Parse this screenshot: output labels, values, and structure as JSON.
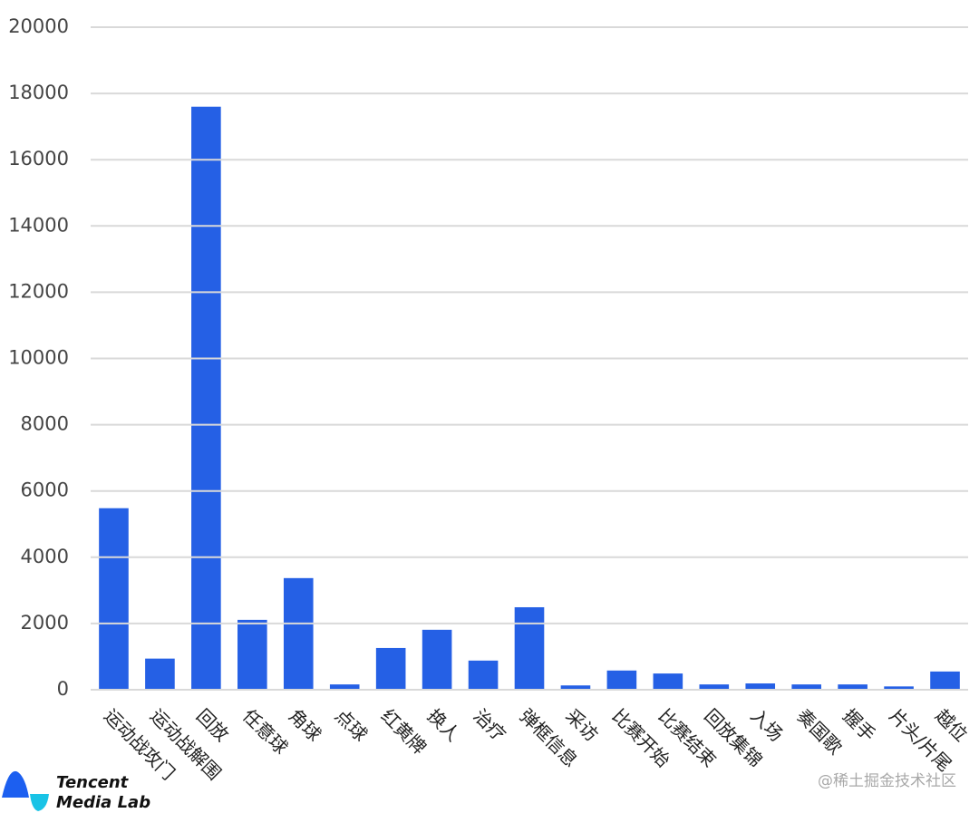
{
  "chart_data": {
    "type": "bar",
    "categories": [
      "运动战攻门",
      "运动战解围",
      "回放",
      "任意球",
      "角球",
      "点球",
      "红黄牌",
      "换人",
      "治疗",
      "弹框信息",
      "采访",
      "比赛开始",
      "比赛结束",
      "回放集锦",
      "入场",
      "奏国歌",
      "握手",
      "片头/片尾",
      "越位"
    ],
    "values": [
      5480,
      940,
      17600,
      2110,
      3370,
      160,
      1260,
      1810,
      880,
      2490,
      130,
      580,
      490,
      160,
      190,
      160,
      160,
      100,
      550
    ],
    "color": "#2560e5",
    "ylim": [
      0,
      20000
    ],
    "yticks": [
      0,
      2000,
      4000,
      6000,
      8000,
      10000,
      12000,
      14000,
      16000,
      18000,
      20000
    ],
    "grid": true
  },
  "logo": {
    "line1": "Tencent",
    "line2": "Media Lab"
  },
  "watermark": "@稀土掘金技术社区"
}
